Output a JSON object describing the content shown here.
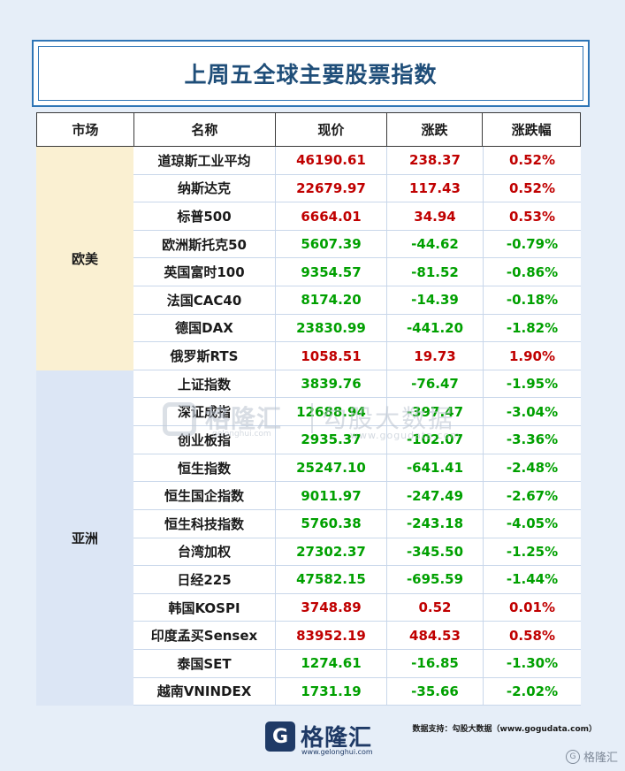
{
  "title": "上周五全球主要股票指数",
  "headers": [
    "市场",
    "名称",
    "现价",
    "涨跌",
    "涨跌幅"
  ],
  "groups": [
    {
      "label": "欧美",
      "rows": 8,
      "bg": "#faf0d2"
    },
    {
      "label": "亚洲",
      "rows": 12,
      "bg": "#dce6f5"
    }
  ],
  "rows": [
    {
      "name": "道琼斯工业平均",
      "price": "46190.61",
      "change": "238.37",
      "pct": "0.52%",
      "dir": "up"
    },
    {
      "name": "纳斯达克",
      "price": "22679.97",
      "change": "117.43",
      "pct": "0.52%",
      "dir": "up"
    },
    {
      "name": "标普500",
      "price": "6664.01",
      "change": "34.94",
      "pct": "0.53%",
      "dir": "up"
    },
    {
      "name": "欧洲斯托克50",
      "price": "5607.39",
      "change": "-44.62",
      "pct": "-0.79%",
      "dir": "down"
    },
    {
      "name": "英国富时100",
      "price": "9354.57",
      "change": "-81.52",
      "pct": "-0.86%",
      "dir": "down"
    },
    {
      "name": "法国CAC40",
      "price": "8174.20",
      "change": "-14.39",
      "pct": "-0.18%",
      "dir": "down"
    },
    {
      "name": "德国DAX",
      "price": "23830.99",
      "change": "-441.20",
      "pct": "-1.82%",
      "dir": "down"
    },
    {
      "name": "俄罗斯RTS",
      "price": "1058.51",
      "change": "19.73",
      "pct": "1.90%",
      "dir": "up"
    },
    {
      "name": "上证指数",
      "price": "3839.76",
      "change": "-76.47",
      "pct": "-1.95%",
      "dir": "down"
    },
    {
      "name": "深证成指",
      "price": "12688.94",
      "change": "-397.47",
      "pct": "-3.04%",
      "dir": "down"
    },
    {
      "name": "创业板指",
      "price": "2935.37",
      "change": "-102.07",
      "pct": "-3.36%",
      "dir": "down"
    },
    {
      "name": "恒生指数",
      "price": "25247.10",
      "change": "-641.41",
      "pct": "-2.48%",
      "dir": "down"
    },
    {
      "name": "恒生国企指数",
      "price": "9011.97",
      "change": "-247.49",
      "pct": "-2.67%",
      "dir": "down"
    },
    {
      "name": "恒生科技指数",
      "price": "5760.38",
      "change": "-243.18",
      "pct": "-4.05%",
      "dir": "down"
    },
    {
      "name": "台湾加权",
      "price": "27302.37",
      "change": "-345.50",
      "pct": "-1.25%",
      "dir": "down"
    },
    {
      "name": "日经225",
      "price": "47582.15",
      "change": "-695.59",
      "pct": "-1.44%",
      "dir": "down"
    },
    {
      "name": "韩国KOSPI",
      "price": "3748.89",
      "change": "0.52",
      "pct": "0.01%",
      "dir": "up"
    },
    {
      "name": "印度孟买Sensex",
      "price": "83952.19",
      "change": "484.53",
      "pct": "0.58%",
      "dir": "up"
    },
    {
      "name": "泰国SET",
      "price": "1274.61",
      "change": "-16.85",
      "pct": "-1.30%",
      "dir": "down"
    },
    {
      "name": "越南VNINDEX",
      "price": "1731.19",
      "change": "-35.66",
      "pct": "-2.02%",
      "dir": "down"
    }
  ],
  "watermark": {
    "brand": "格隆汇",
    "url": "gelonghui.com",
    "brand2": "勾股大数据",
    "url2": "www.gogudata.com"
  },
  "footer": {
    "logo_text": "格隆汇",
    "logo_url": "www.gelonghui.com",
    "source": "数据支持：勾股大数据（www.gogudata.com）",
    "corner": "格隆汇"
  },
  "colors": {
    "up": "#c00000",
    "down": "#00a000",
    "title": "#1f4e79",
    "border": "#2e75b6"
  }
}
